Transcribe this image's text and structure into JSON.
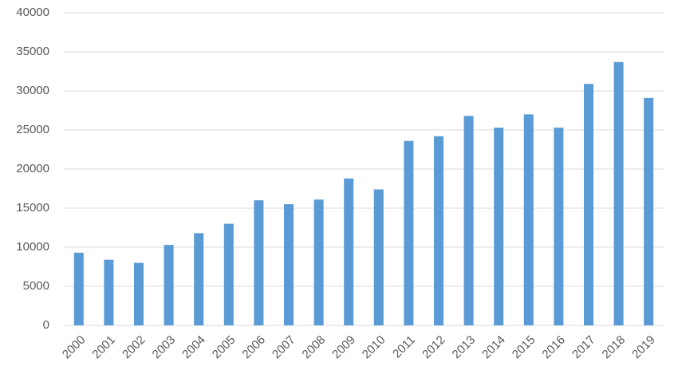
{
  "chart_data": {
    "type": "bar",
    "categories": [
      "2000",
      "2001",
      "2002",
      "2003",
      "2004",
      "2005",
      "2006",
      "2007",
      "2008",
      "2009",
      "2010",
      "2011",
      "2012",
      "2013",
      "2014",
      "2015",
      "2016",
      "2017",
      "2018",
      "2019"
    ],
    "values": [
      9300,
      8400,
      8000,
      10300,
      11800,
      13000,
      16000,
      15500,
      16100,
      18800,
      17400,
      23600,
      24200,
      26800,
      25300,
      27000,
      25300,
      30900,
      33700,
      29100
    ],
    "color": "#5b9bd5",
    "ylim": [
      0,
      40000
    ],
    "yticks": [
      0,
      5000,
      10000,
      15000,
      20000,
      25000,
      30000,
      35000,
      40000
    ],
    "grid": true
  }
}
